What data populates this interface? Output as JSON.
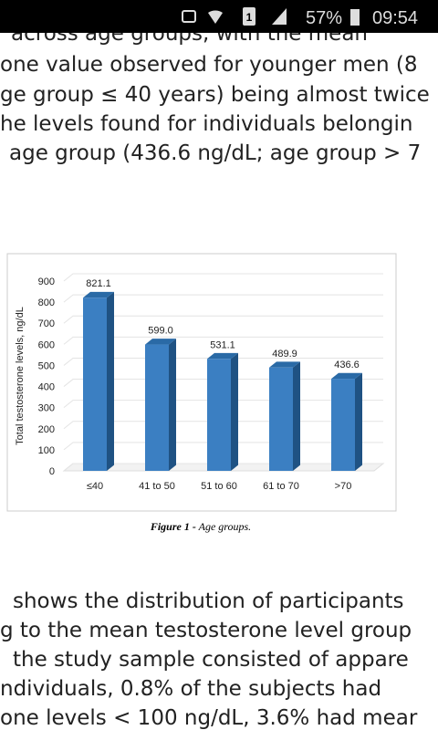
{
  "status_bar": {
    "sim": "1",
    "battery": "57%",
    "time": "09:54"
  },
  "text_top": [
    "across age groups, with the mean",
    "one value observed for younger men (8",
    "ge group ≤ 40 years) being almost twice",
    "he levels found for individuals belongin",
    "age group (436.6 ng/dL; age group > 7"
  ],
  "chart_data": {
    "type": "bar",
    "y_label": "Total testosterone levels, ng/dL",
    "categories": [
      "≤40",
      "41 to 50",
      "51 to 60",
      "61 to 70",
      ">70"
    ],
    "values": [
      821.1,
      599.0,
      531.1,
      489.9,
      436.6
    ],
    "value_labels": [
      "821.1",
      "599.0",
      "531.1",
      "489.9",
      "436.6"
    ],
    "color": "#3b7fc2",
    "ylim": [
      0,
      900
    ],
    "yticks": [
      0,
      100,
      200,
      300,
      400,
      500,
      600,
      700,
      800,
      900
    ],
    "grid": true
  },
  "caption": {
    "label": "Figure 1 -",
    "text": "Age groups."
  },
  "text_bottom": [
    "shows the distribution of participants",
    "g to the mean testosterone level group",
    "the study sample consisted of appare",
    "ndividuals, 0.8% of the subjects had",
    "one levels < 100 ng/dL, 3.6% had mear"
  ]
}
